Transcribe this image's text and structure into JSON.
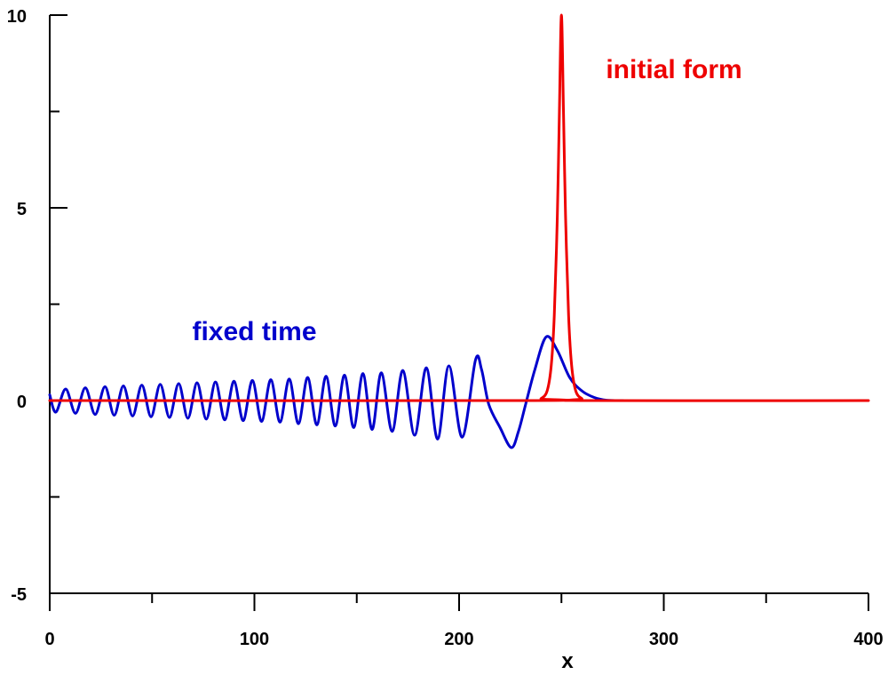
{
  "chart_data": {
    "type": "line",
    "xlabel": "x",
    "ylabel": "",
    "xlim": [
      0,
      400
    ],
    "ylim": [
      -5,
      10
    ],
    "x_ticks": [
      0,
      100,
      200,
      300,
      400
    ],
    "x_tick_labels": [
      "0",
      "100",
      "200",
      "300",
      "400"
    ],
    "x_minor_ticks": [
      50,
      150,
      250,
      350
    ],
    "y_ticks": [
      -5,
      0,
      5,
      10
    ],
    "y_tick_labels": [
      "-5",
      "0",
      "5",
      "10"
    ],
    "y_minor_ticks": [
      -2.5,
      2.5,
      7.5
    ],
    "grid": false,
    "baseline": 0,
    "series": [
      {
        "name": "fixed time",
        "color": "#0000cc",
        "x": [
          0,
          3,
          7.8,
          12.6,
          17.4,
          22.2,
          27,
          31.5,
          36,
          40.5,
          45,
          49.5,
          54,
          58.5,
          63,
          67.5,
          72,
          76.5,
          81,
          85.5,
          90,
          94.5,
          99,
          103.5,
          108,
          112.5,
          117,
          121.5,
          126,
          130.5,
          135,
          139.5,
          144,
          148.5,
          153,
          157.5,
          162,
          167.3,
          172.5,
          178.3,
          184,
          189.5,
          195,
          201.5,
          208,
          211,
          214.5,
          220,
          225.5,
          229,
          232.5,
          237,
          242.5,
          248,
          254,
          260,
          266,
          272,
          280
        ],
        "y": [
          0.15,
          -0.3,
          0.3,
          -0.33,
          0.33,
          -0.36,
          0.36,
          -0.38,
          0.38,
          -0.4,
          0.4,
          -0.42,
          0.42,
          -0.44,
          0.44,
          -0.46,
          0.46,
          -0.48,
          0.48,
          -0.5,
          0.5,
          -0.52,
          0.52,
          -0.54,
          0.54,
          -0.56,
          0.56,
          -0.6,
          0.6,
          -0.63,
          0.63,
          -0.66,
          0.66,
          -0.7,
          0.7,
          -0.75,
          0.72,
          -0.8,
          0.78,
          -0.9,
          0.85,
          -1.0,
          0.9,
          -0.95,
          1.05,
          0.8,
          -0.1,
          -0.7,
          -1.22,
          -0.8,
          -0.1,
          0.8,
          1.65,
          1.3,
          0.6,
          0.25,
          0.08,
          0.01,
          0.0
        ]
      },
      {
        "name": "initial form",
        "color": "#ee0000",
        "x": [
          0,
          236,
          240,
          243,
          245,
          246.5,
          248,
          249,
          250,
          251,
          252,
          253.5,
          255,
          257,
          260,
          264,
          400
        ],
        "y": [
          0,
          0,
          0.05,
          0.25,
          0.9,
          2.2,
          4.8,
          7.5,
          10.0,
          7.5,
          4.8,
          2.2,
          0.9,
          0.25,
          0.05,
          0,
          0
        ]
      }
    ],
    "annotations": [
      {
        "text": "fixed time",
        "x": 100,
        "y": 1.8,
        "color": "#0000cc"
      },
      {
        "text": "initial form",
        "x": 305,
        "y": 8.6,
        "color": "#ee0000"
      }
    ]
  }
}
